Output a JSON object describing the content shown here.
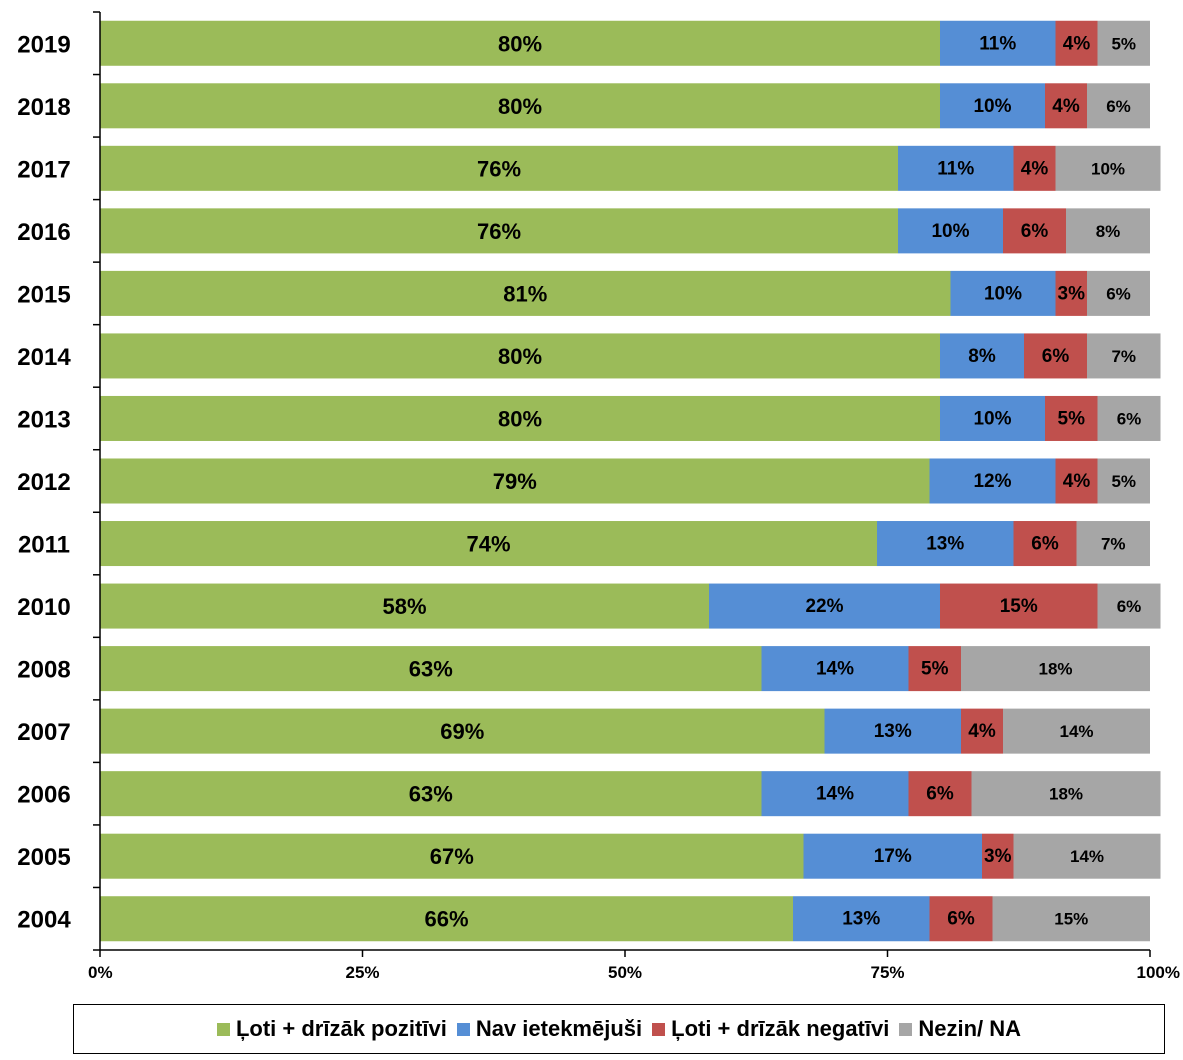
{
  "chart_data": {
    "type": "bar",
    "orientation": "horizontal",
    "stacked": true,
    "categories": [
      "2019",
      "2018",
      "2017",
      "2016",
      "2015",
      "2014",
      "2013",
      "2012",
      "2011",
      "2010",
      "2008",
      "2007",
      "2006",
      "2005",
      "2004"
    ],
    "series": [
      {
        "name": "Ļoti + drīzāk pozitīvi",
        "color": "#9BBB59",
        "values": [
          80,
          80,
          76,
          76,
          81,
          80,
          80,
          79,
          74,
          58,
          63,
          69,
          63,
          67,
          66
        ]
      },
      {
        "name": "Nav ietekmējuši",
        "color": "#558ED5",
        "values": [
          11,
          10,
          11,
          10,
          10,
          8,
          10,
          12,
          13,
          22,
          14,
          13,
          14,
          17,
          13
        ]
      },
      {
        "name": "Ļoti + drīzāk negatīvi",
        "color": "#C0504D",
        "values": [
          4,
          4,
          4,
          6,
          3,
          6,
          5,
          4,
          6,
          15,
          5,
          4,
          6,
          3,
          6
        ]
      },
      {
        "name": "Nezin/ NA",
        "color": "#A6A6A6",
        "values": [
          5,
          6,
          10,
          8,
          6,
          7,
          6,
          5,
          7,
          6,
          18,
          14,
          18,
          14,
          15
        ]
      }
    ],
    "value_suffix": "%",
    "xlim": [
      0,
      100
    ],
    "x_ticks": [
      "0%",
      "25%",
      "50%",
      "75%",
      "100%"
    ],
    "legend_position": "bottom",
    "title": "",
    "xlabel": "",
    "ylabel": ""
  }
}
